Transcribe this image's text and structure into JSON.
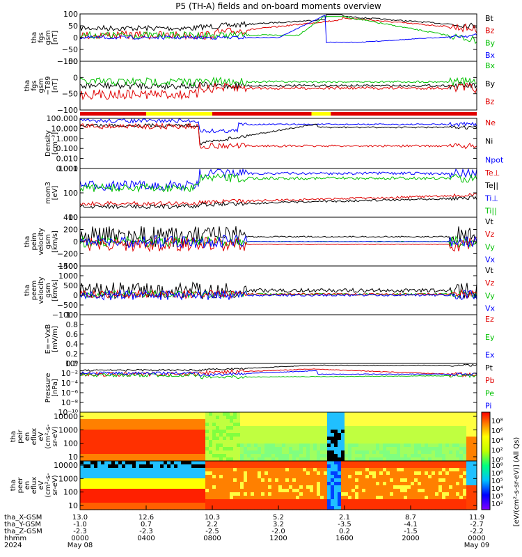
{
  "chart_data": {
    "type": "line",
    "title": "P5 (TH-A) fields and on-board moments overview",
    "time_axis": {
      "start": "2024-05-08 00:00",
      "end": "2024-05-09 00:00",
      "rows": [
        {
          "label": "tha_X-GSM",
          "values": [
            "13.0",
            "12.6",
            "10.3",
            "5.2",
            "2.1",
            "8.7",
            "11.9"
          ]
        },
        {
          "label": "tha_Y-GSM",
          "values": [
            "-1.0",
            "0.7",
            "2.2",
            "3.2",
            "-3.5",
            "-4.1",
            "-2.7"
          ]
        },
        {
          "label": "tha_Z-GSM",
          "values": [
            "-2.3",
            "-2.3",
            "-2.5",
            "-2.0",
            "0.2",
            "-1.5",
            "-2.2"
          ]
        },
        {
          "label": "hhmm",
          "values": [
            "0000",
            "0400",
            "0800",
            "1200",
            "1600",
            "2000",
            "0000"
          ]
        },
        {
          "label": "2024",
          "values": [
            "May 08",
            "",
            "",
            "",
            "",
            "",
            "May 09"
          ]
        }
      ]
    },
    "panels": [
      {
        "id": "fgs",
        "ylabel": [
          "tha",
          "fgs",
          "gsm",
          "[nT]"
        ],
        "ylim": [
          -100,
          100
        ],
        "ticks": [
          "100",
          "50",
          "0",
          "−50",
          "−100"
        ],
        "legend": [
          {
            "name": "Bt",
            "color": "#000000"
          },
          {
            "name": "Bz",
            "color": "#e00000"
          },
          {
            "name": "By",
            "color": "#00c000"
          },
          {
            "name": "Bx",
            "color": "#0000ff"
          }
        ]
      },
      {
        "id": "fgs_dsc",
        "ylabel": [
          "tha",
          "fgs",
          "gsm",
          "−T89",
          "[nT]"
        ],
        "ylim": [
          -120,
          50
        ],
        "ticks": [
          "50",
          "0",
          "−50",
          "−100"
        ],
        "legend": [
          {
            "name": "Bx",
            "color": "#00c000"
          },
          {
            "name": "By",
            "color": "#000000"
          },
          {
            "name": "Bz",
            "color": "#e00000"
          }
        ]
      },
      {
        "id": "density",
        "ylabel": [
          "Density",
          "[cm⁻³]"
        ],
        "scale": "log",
        "ylim": [
          0.001,
          100
        ],
        "ticks": [
          "100.000",
          "10.000",
          "1.000",
          "0.100",
          "0.010",
          "0.001"
        ],
        "legend": [
          {
            "name": "Ne",
            "color": "#e00000"
          },
          {
            "name": "Ni",
            "color": "#000000"
          },
          {
            "name": "Npot",
            "color": "#0000ff"
          }
        ]
      },
      {
        "id": "temperature",
        "ylabel": [
          "mom3",
          "[eV]"
        ],
        "scale": "log",
        "ylim": [
          10,
          5000
        ],
        "ticks": [
          "1000",
          "100",
          "10"
        ],
        "legend": [
          {
            "name": "Te⊥",
            "color": "#e00000"
          },
          {
            "name": "Te||",
            "color": "#000000"
          },
          {
            "name": "Ti⊥",
            "color": "#0000ff"
          },
          {
            "name": "Ti||",
            "color": "#00c000"
          }
        ]
      },
      {
        "id": "peim_velocity",
        "ylabel": [
          "tha",
          "peim",
          "velocity",
          "gsm",
          "[km/s]"
        ],
        "ylim": [
          -400,
          400
        ],
        "ticks": [
          "400",
          "200",
          "0",
          "−200",
          "−400"
        ],
        "legend": [
          {
            "name": "Vt",
            "color": "#000000"
          },
          {
            "name": "Vz",
            "color": "#e00000"
          },
          {
            "name": "Vy",
            "color": "#00c000"
          },
          {
            "name": "Vx",
            "color": "#0000ff"
          }
        ]
      },
      {
        "id": "peem_velocity",
        "ylabel": [
          "tha",
          "peem",
          "velocity",
          "gsm",
          "[km/s]"
        ],
        "ylim": [
          -1000,
          1500
        ],
        "ticks": [
          "1500",
          "1000",
          "500",
          "0",
          "−500",
          "−1000"
        ],
        "legend": [
          {
            "name": "Vt",
            "color": "#000000"
          },
          {
            "name": "Vz",
            "color": "#e00000"
          },
          {
            "name": "Vy",
            "color": "#00c000"
          },
          {
            "name": "Vx",
            "color": "#0000ff"
          }
        ]
      },
      {
        "id": "efield",
        "ylabel": [
          "E=−VxB",
          "[mV/m]"
        ],
        "ylim": [
          0,
          1
        ],
        "ticks": [
          "1.0",
          "0.8",
          "0.6",
          "0.4",
          "0.2",
          "0.0"
        ],
        "legend": [
          {
            "name": "Ez",
            "color": "#e00000"
          },
          {
            "name": "Ey",
            "color": "#00c000"
          },
          {
            "name": "Ex",
            "color": "#0000ff"
          }
        ]
      },
      {
        "id": "pressure",
        "ylabel": [
          "Pressure",
          "[nPa]"
        ],
        "scale": "log",
        "ylim": [
          1e-10,
          1
        ],
        "ticks": [
          "10⁰",
          "10⁻²",
          "10⁻⁴",
          "10⁻⁶",
          "10⁻⁸",
          "10⁻¹⁰"
        ],
        "legend": [
          {
            "name": "Pt",
            "color": "#000000"
          },
          {
            "name": "Pb",
            "color": "#e00000"
          },
          {
            "name": "Pe",
            "color": "#00c000"
          },
          {
            "name": "Pi",
            "color": "#0000ff"
          }
        ]
      },
      {
        "id": "peir_eflux",
        "ylabel": [
          "tha",
          "peir",
          "en",
          "eflux",
          "eV",
          "(cm²-s-",
          "sr-eV)"
        ],
        "scale": "log",
        "ylim": [
          10,
          10000
        ],
        "ticks": [
          "10000",
          "1000",
          "100",
          "10"
        ]
      },
      {
        "id": "peer_eflux",
        "ylabel": [
          "tha",
          "peer",
          "en",
          "eflux",
          "eV",
          "(cm²-s-",
          "sr-eV)"
        ],
        "scale": "log",
        "ylim": [
          10,
          10000
        ],
        "ticks": [
          "10000",
          "1000",
          "100",
          "10"
        ]
      }
    ],
    "colorbar": {
      "label": "[eV/(cm²-s-sr-eV)] (All Qs)",
      "ticks_upper": [
        "10⁸",
        "10⁶",
        "10⁴",
        "10²",
        "10⁰"
      ],
      "ticks_lower": [
        "10⁸",
        "10⁶",
        "10⁵",
        "10⁴",
        "10³",
        "10²"
      ]
    },
    "mode_bar": [
      {
        "from": "0000",
        "to": "0400",
        "color": "#e00000"
      },
      {
        "from": "0400",
        "to": "0800",
        "color": "#ffff00"
      },
      {
        "from": "0800",
        "to": "1400",
        "color": "#e00000"
      },
      {
        "from": "1400",
        "to": "1510",
        "color": "#ffff00"
      },
      {
        "from": "1510",
        "to": "2400",
        "color": "#e00000"
      }
    ]
  }
}
